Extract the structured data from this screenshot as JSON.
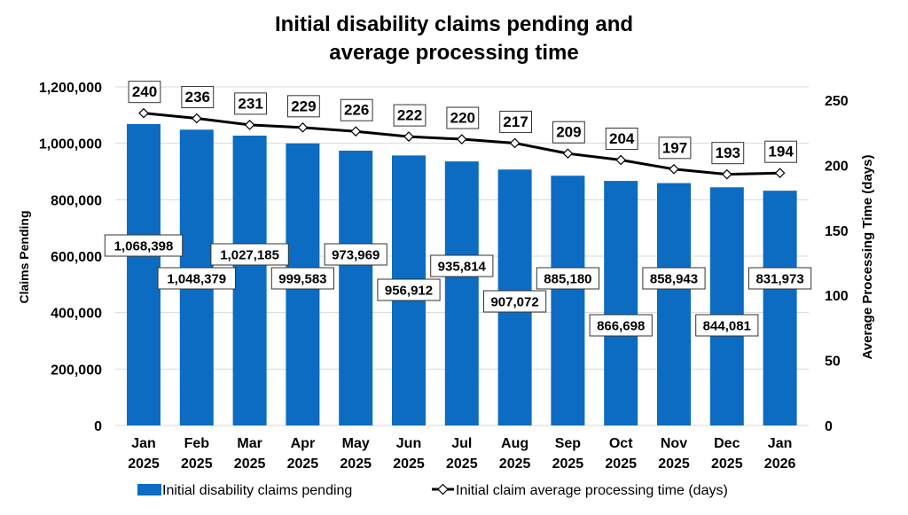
{
  "chart_data": {
    "type": "bar+line",
    "title_lines": [
      "Initial disability claims pending and",
      "average processing time"
    ],
    "categories": [
      [
        "Jan",
        "2025"
      ],
      [
        "Feb",
        "2025"
      ],
      [
        "Mar",
        "2025"
      ],
      [
        "Apr",
        "2025"
      ],
      [
        "May",
        "2025"
      ],
      [
        "Jun",
        "2025"
      ],
      [
        "Jul",
        "2025"
      ],
      [
        "Aug",
        "2025"
      ],
      [
        "Sep",
        "2025"
      ],
      [
        "Oct",
        "2025"
      ],
      [
        "Nov",
        "2025"
      ],
      [
        "Dec",
        "2025"
      ],
      [
        "Jan",
        "2026"
      ]
    ],
    "ylabel": "Claims Pending",
    "y2label": "Average Processing Time (days)",
    "ylim": [
      0,
      1200000
    ],
    "y_ticks": [
      "0",
      "200,000",
      "400,000",
      "600,000",
      "800,000",
      "1,000,000",
      "1,200,000"
    ],
    "y2lim": [
      0,
      250
    ],
    "y2_ticks": [
      "0",
      "50",
      "100",
      "150",
      "200",
      "250"
    ],
    "grid": true,
    "legend_position": "bottom",
    "series": [
      {
        "name": "Initial disability claims pending",
        "type": "bar",
        "axis": "left",
        "color": "#0b6cc2",
        "values": [
          1068398,
          1048379,
          1027185,
          999583,
          973969,
          956912,
          935814,
          907072,
          885180,
          866698,
          858943,
          844081,
          831973
        ],
        "labels": [
          "1,068,398",
          "1,048,379",
          "1,027,185",
          "999,583",
          "973,969",
          "956,912",
          "935,814",
          "907,072",
          "885,180",
          "866,698",
          "858,943",
          "844,081",
          "831,973"
        ]
      },
      {
        "name": "Initial claim average processing time (days)",
        "type": "line",
        "axis": "right",
        "color": "#000000",
        "marker": "diamond",
        "values": [
          240,
          236,
          231,
          229,
          226,
          222,
          220,
          217,
          209,
          204,
          197,
          193,
          194
        ],
        "labels": [
          "240",
          "236",
          "231",
          "229",
          "226",
          "222",
          "220",
          "217",
          "209",
          "204",
          "197",
          "193",
          "194"
        ]
      }
    ]
  }
}
